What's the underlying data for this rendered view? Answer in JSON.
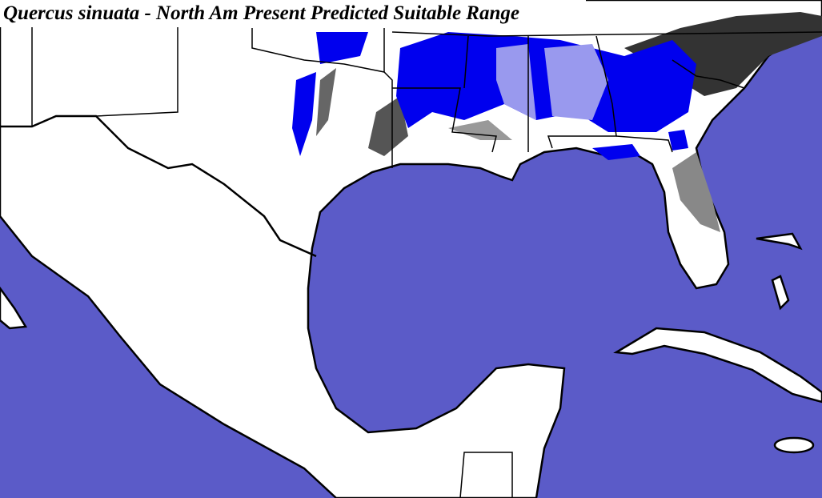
{
  "title": "Quercus sinuata - North Am Present Predicted Suitable Range"
}
